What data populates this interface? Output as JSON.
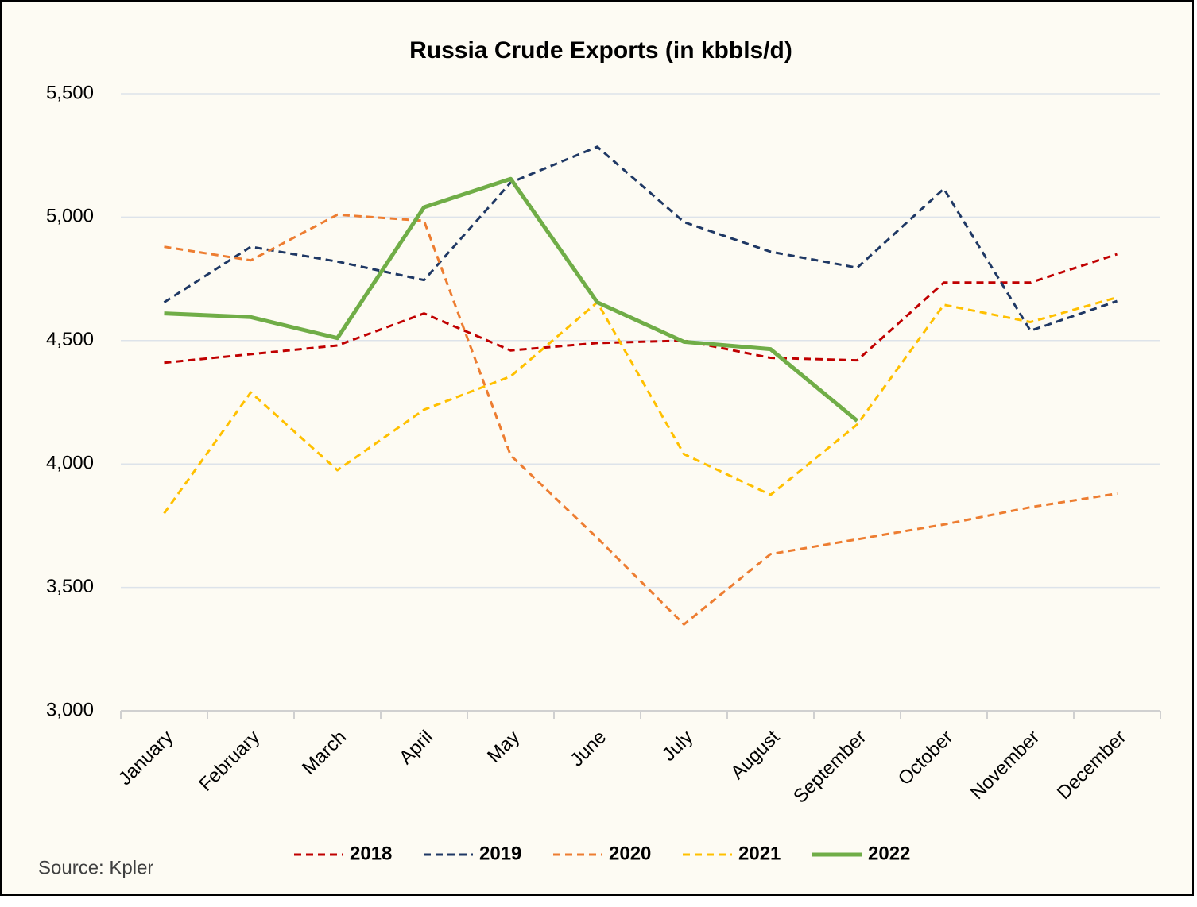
{
  "chart_data": {
    "type": "line",
    "title": "Russia Crude Exports (in kbbls/d)",
    "source": "Source: Kpler",
    "categories": [
      "January",
      "February",
      "March",
      "April",
      "May",
      "June",
      "July",
      "August",
      "September",
      "October",
      "November",
      "December"
    ],
    "series": [
      {
        "name": "2018",
        "color": "#c00000",
        "dashed": true,
        "values": [
          4410,
          4445,
          4480,
          4610,
          4460,
          4490,
          4500,
          4430,
          4420,
          4735,
          4735,
          4850
        ]
      },
      {
        "name": "2019",
        "color": "#1f3864",
        "dashed": true,
        "values": [
          4655,
          4880,
          4820,
          4745,
          5140,
          5285,
          4980,
          4860,
          4795,
          5115,
          4540,
          4660
        ]
      },
      {
        "name": "2020",
        "color": "#ed7d31",
        "dashed": true,
        "values": [
          4880,
          4825,
          5010,
          4985,
          4035,
          3700,
          3350,
          3635,
          3695,
          3755,
          3825,
          3880
        ]
      },
      {
        "name": "2021",
        "color": "#ffc000",
        "dashed": true,
        "values": [
          3800,
          4290,
          3975,
          4220,
          4355,
          4655,
          4040,
          3875,
          4160,
          4645,
          4575,
          4675
        ]
      },
      {
        "name": "2022",
        "color": "#70ad47",
        "dashed": false,
        "values": [
          4610,
          4595,
          4510,
          5040,
          5155,
          4655,
          4495,
          4465,
          4175,
          null,
          null,
          null
        ]
      }
    ],
    "ylim": [
      3000,
      5500
    ],
    "yticks": [
      {
        "value": 3000,
        "label": "3,000"
      },
      {
        "value": 3500,
        "label": "3,500"
      },
      {
        "value": 4000,
        "label": "4,000"
      },
      {
        "value": 4500,
        "label": "4,500"
      },
      {
        "value": 5000,
        "label": "5,000"
      },
      {
        "value": 5500,
        "label": "5,500"
      }
    ],
    "grid": true,
    "legend": "bottom"
  }
}
